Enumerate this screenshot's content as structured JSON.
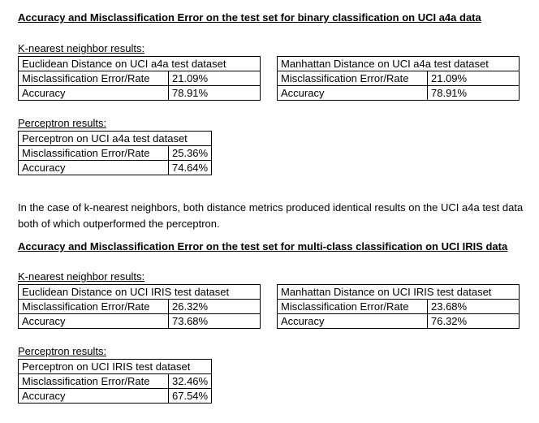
{
  "binary": {
    "heading": "Accuracy and Misclassification Error on the test set for binary classification on UCI a4a data",
    "knn_label": "K-nearest neighbor results:",
    "euclidean": {
      "title": "Euclidean Distance on UCI a4a test dataset",
      "rows": [
        {
          "label": "Misclassification Error/Rate",
          "value": "21.09%"
        },
        {
          "label": "Accuracy",
          "value": "78.91%"
        }
      ]
    },
    "manhattan": {
      "title": "Manhattan Distance on UCI a4a test dataset",
      "rows": [
        {
          "label": "Misclassification Error/Rate",
          "value": "21.09%"
        },
        {
          "label": "Accuracy",
          "value": "78.91%"
        }
      ]
    },
    "perceptron_label": "Perceptron results:",
    "perceptron": {
      "title": "Perceptron on UCI a4a test dataset",
      "rows": [
        {
          "label": "Misclassification Error/Rate",
          "value": "25.36%"
        },
        {
          "label": "Accuracy",
          "value": "74.64%"
        }
      ]
    }
  },
  "summary": "In the case of k-nearest neighbors, both distance metrics produced identical results on the UCI a4a test data both of which outperformed the perceptron.",
  "multiclass": {
    "heading": "Accuracy and Misclassification Error on the test set for multi-class classification on UCI IRIS data",
    "knn_label": "K-nearest neighbor results:",
    "euclidean": {
      "title": "Euclidean Distance on UCI IRIS test dataset",
      "rows": [
        {
          "label": "Misclassification Error/Rate",
          "value": "26.32%"
        },
        {
          "label": "Accuracy",
          "value": "73.68%"
        }
      ]
    },
    "manhattan": {
      "title": "Manhattan Distance on UCI IRIS test dataset",
      "rows": [
        {
          "label": "Misclassification Error/Rate",
          "value": "23.68%"
        },
        {
          "label": "Accuracy",
          "value": "76.32%"
        }
      ]
    },
    "perceptron_label": "Perceptron results:",
    "perceptron": {
      "title": "Perceptron on UCI IRIS test dataset",
      "rows": [
        {
          "label": "Misclassification Error/Rate",
          "value": "32.46%"
        },
        {
          "label": "Accuracy",
          "value": "67.54%"
        }
      ]
    }
  }
}
